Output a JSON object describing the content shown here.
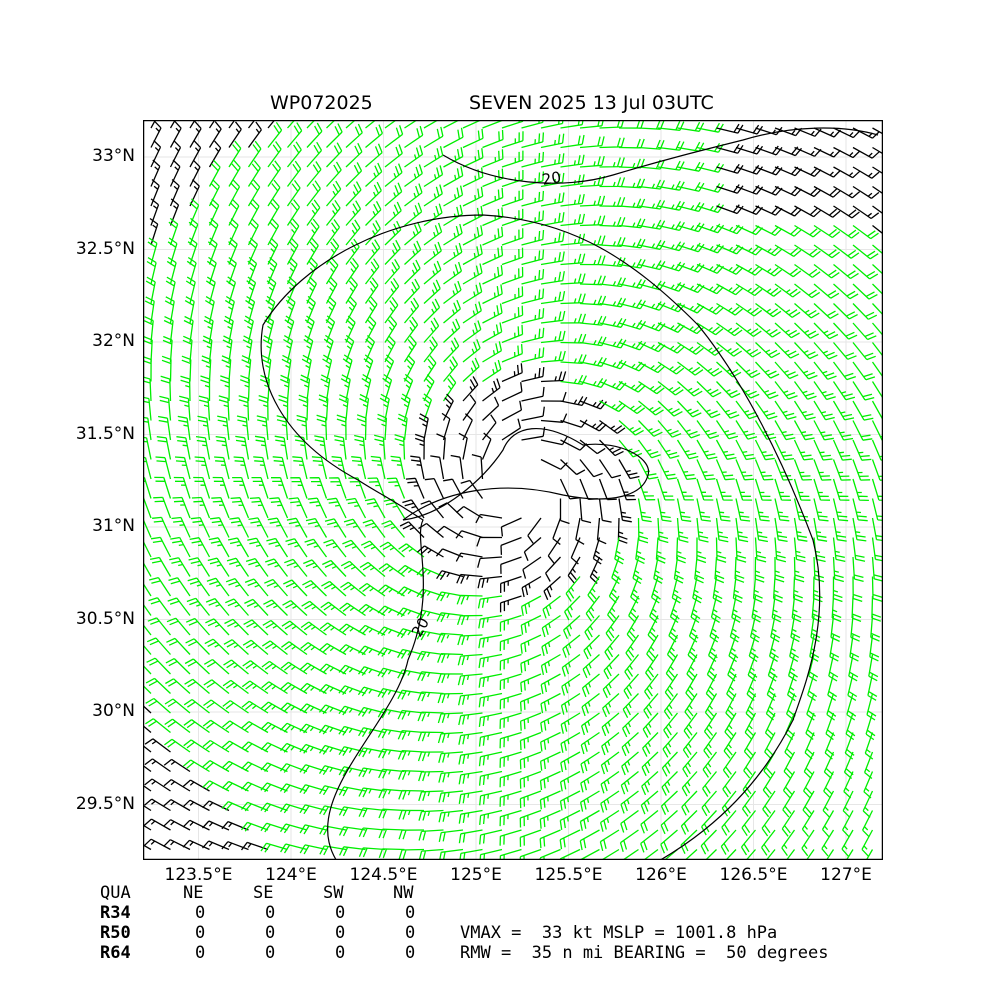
{
  "header": {
    "storm_id": "WP072025",
    "storm_info": "SEVEN 2025 13 Jul 03UTC"
  },
  "map": {
    "lat_ticks": [
      "29.5°N",
      "30°N",
      "30.5°N",
      "31°N",
      "31.5°N",
      "32°N",
      "32.5°N",
      "33°N"
    ],
    "lon_ticks": [
      "123.5°E",
      "124°E",
      "124.5°E",
      "125°E",
      "125.5°E",
      "126°E",
      "126.5°E",
      "127°E"
    ],
    "lat_range": [
      29.2,
      33.2
    ],
    "lon_range": [
      123.2,
      127.2
    ],
    "center": {
      "lat": 31.22,
      "lon": 125.22
    },
    "contour_label": "20",
    "colors": {
      "barb_low": "#000000",
      "barb_high": "#00ee00",
      "contour": "#000000",
      "frame": "#000000"
    }
  },
  "quadrant_table": {
    "header": [
      "QUA",
      "NE",
      "SE",
      "SW",
      "NW"
    ],
    "rows": [
      {
        "label": "R34",
        "values": [
          "0",
          "0",
          "0",
          "0"
        ]
      },
      {
        "label": "R50",
        "values": [
          "0",
          "0",
          "0",
          "0"
        ]
      },
      {
        "label": "R64",
        "values": [
          "0",
          "0",
          "0",
          "0"
        ]
      }
    ]
  },
  "info": {
    "line1": "VMAX =  33 kt MSLP = 1001.8 hPa",
    "line2": "RMW =  35 n mi BEARING =  50 degrees"
  }
}
